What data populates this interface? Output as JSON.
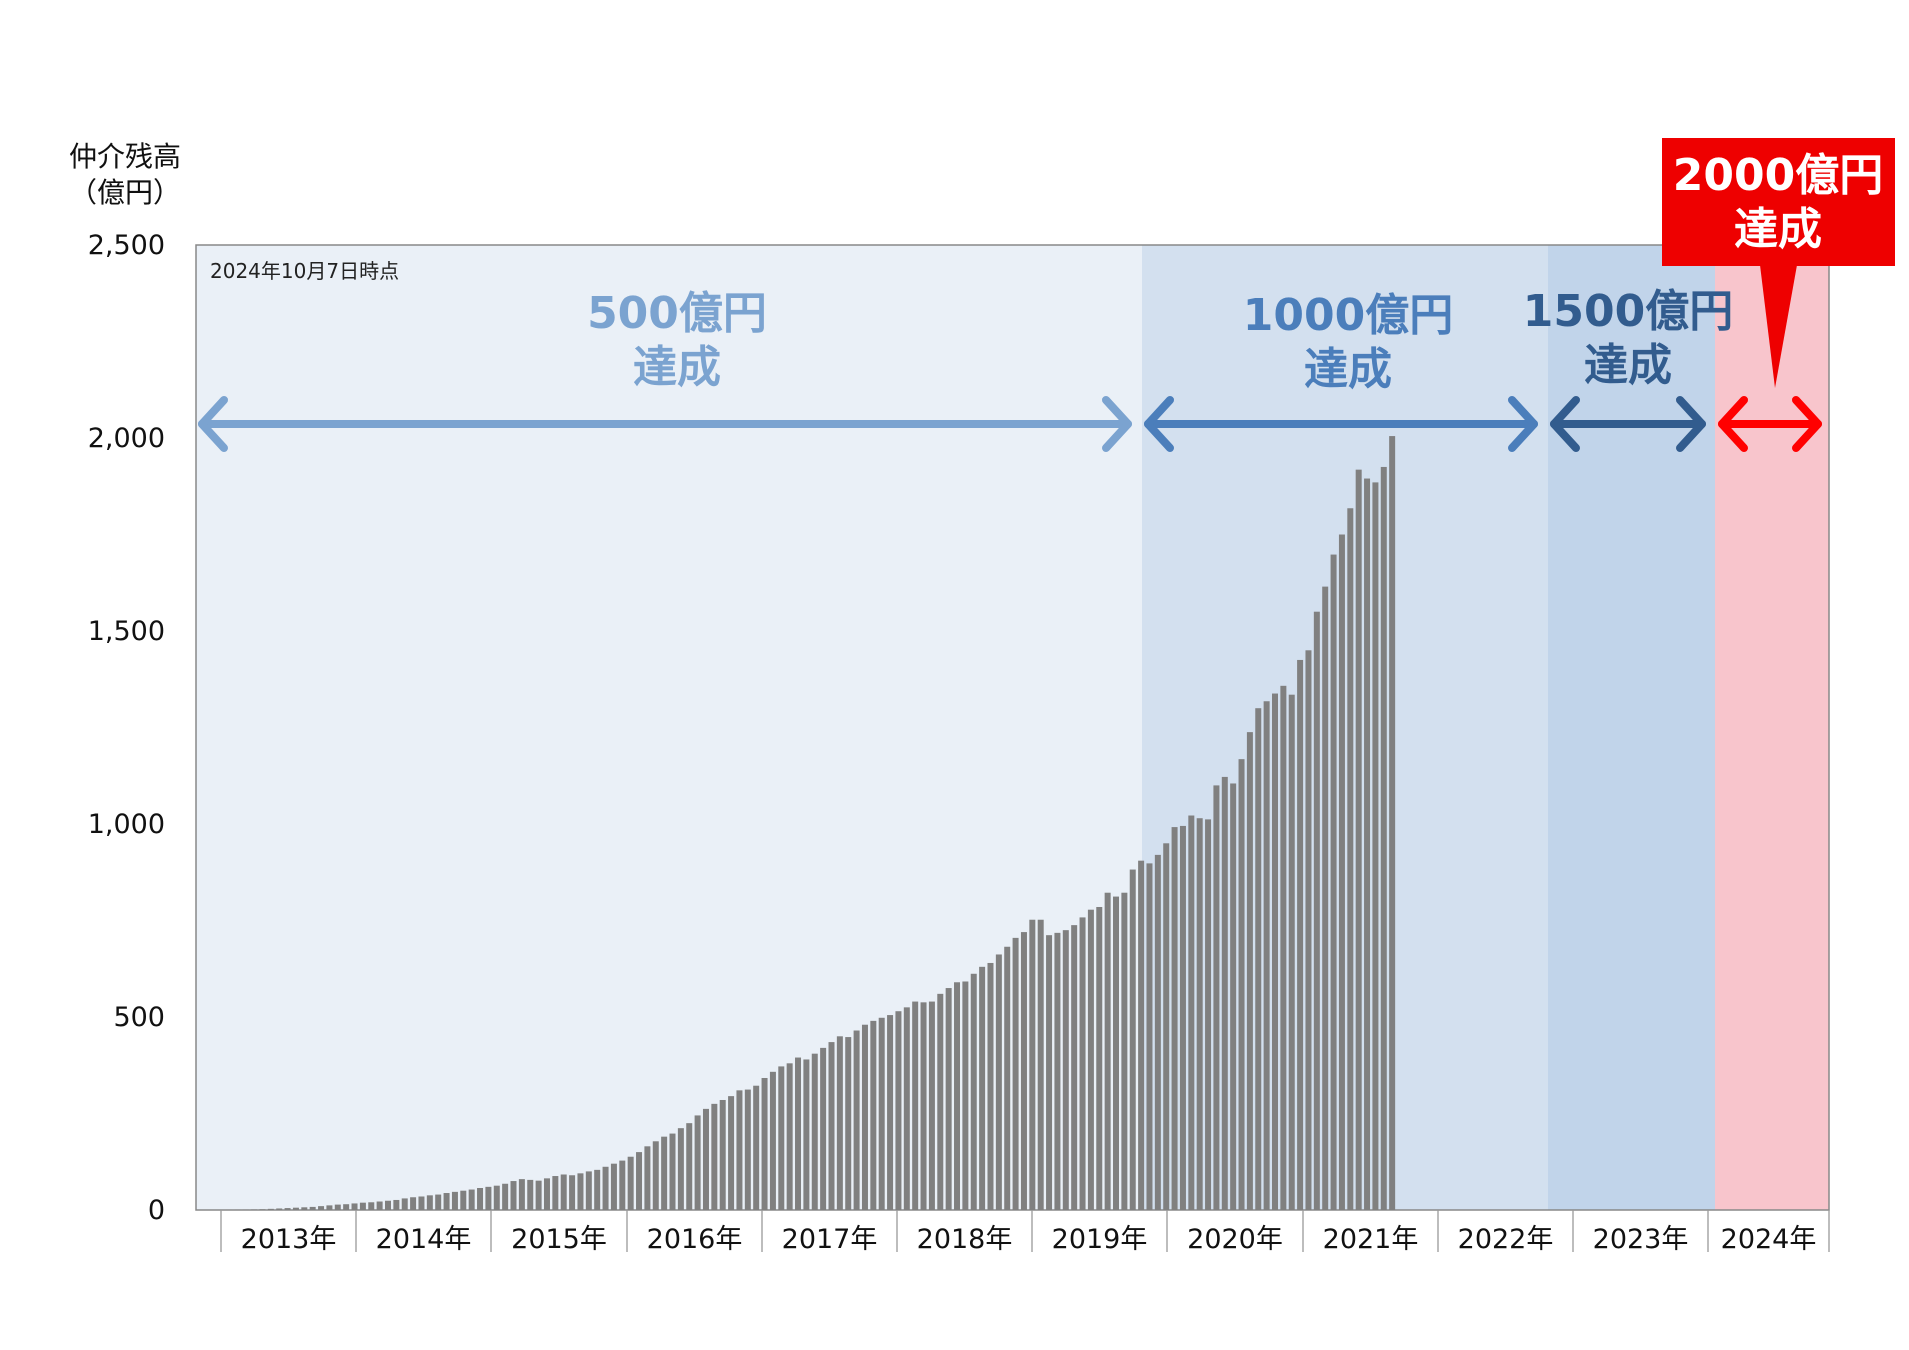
{
  "chart_data": {
    "type": "bar",
    "ylabel_line1": "仲介残高",
    "ylabel_line2": "（億円）",
    "note": "2024年10月7日時点",
    "ylim": [
      0,
      2500
    ],
    "yticks": [
      {
        "value": 0,
        "label": "0"
      },
      {
        "value": 500,
        "label": "500"
      },
      {
        "value": 1000,
        "label": "1,000"
      },
      {
        "value": 1500,
        "label": "1,500"
      },
      {
        "value": 2000,
        "label": "2,000"
      },
      {
        "value": 2500,
        "label": "2,500"
      }
    ],
    "year_labels": [
      "2013年",
      "2014年",
      "2015年",
      "2016年",
      "2017年",
      "2018年",
      "2019年",
      "2020年",
      "2021年",
      "2022年",
      "2023年",
      "2024年"
    ],
    "bar_color": "#808080",
    "values": [
      0.3,
      0.5,
      1,
      1.5,
      2,
      3,
      4,
      5,
      6,
      7,
      8,
      10,
      12,
      14,
      15,
      17,
      19,
      20,
      22,
      24,
      26,
      30,
      33,
      35,
      38,
      40,
      44,
      47,
      50,
      53,
      57,
      60,
      63,
      68,
      75,
      80,
      78,
      76,
      82,
      88,
      92,
      90,
      95,
      100,
      104,
      112,
      120,
      128,
      138,
      150,
      165,
      178,
      190,
      198,
      212,
      225,
      245,
      262,
      275,
      285,
      295,
      310,
      312,
      322,
      342,
      358,
      372,
      380,
      395,
      390,
      405,
      420,
      435,
      450,
      448,
      465,
      480,
      490,
      498,
      505,
      515,
      525,
      540,
      538,
      540,
      560,
      575,
      590,
      592,
      612,
      630,
      640,
      662,
      682,
      705,
      720,
      752,
      752,
      712,
      718,
      725,
      738,
      758,
      778,
      785,
      822,
      812,
      822,
      882,
      905,
      898,
      920,
      950,
      992,
      995,
      1022,
      1015,
      1012,
      1100,
      1122,
      1105,
      1168,
      1238,
      1300,
      1318,
      1338,
      1358,
      1335,
      1425,
      1450,
      1550,
      1615,
      1698,
      1750,
      1818,
      1918,
      1895,
      1885,
      1925,
      2005
    ]
  },
  "milestones": [
    {
      "line1": "500億円",
      "line2": "達成",
      "color": "#7BA3D0",
      "shade": "#EAF0F7"
    },
    {
      "line1": "1000億円",
      "line2": "達成",
      "color": "#4B7EBB",
      "shade": "#D3E0EF"
    },
    {
      "line1": "1500億円",
      "line2": "達成",
      "color": "#325C8E",
      "shade": "#C1D4EA"
    },
    {
      "line1": "2000億円",
      "line2": "達成",
      "color": "#FF0000",
      "shade": "#F8C5CC",
      "callout_bg": "#EE0000"
    }
  ]
}
